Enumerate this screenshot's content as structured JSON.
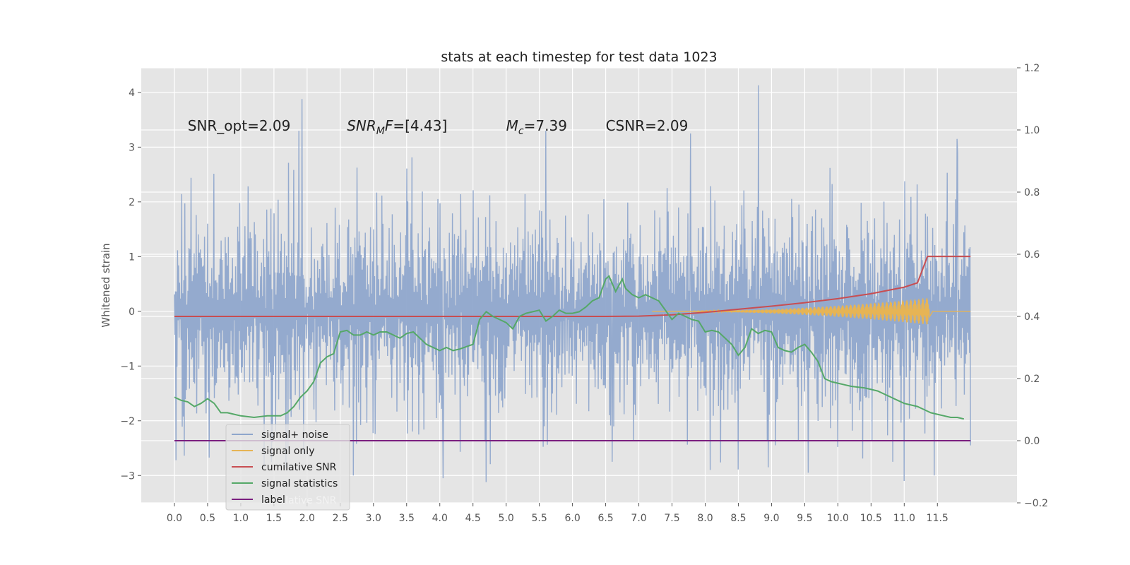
{
  "chart_data": {
    "type": "line",
    "title": "stats at each timestep for test data 1023",
    "ylabel": "Whitened strain",
    "xlim": [
      -0.5,
      12.7
    ],
    "ylim": [
      -3.5,
      4.45
    ],
    "y2lim": [
      -0.2,
      1.2
    ],
    "x_ticks": [
      0.0,
      0.5,
      1.0,
      1.5,
      2.0,
      2.5,
      3.0,
      3.5,
      4.0,
      4.5,
      5.0,
      5.5,
      6.0,
      6.5,
      7.0,
      7.5,
      8.0,
      8.5,
      9.0,
      9.5,
      10.0,
      10.5,
      11.0,
      11.5
    ],
    "x_tick_labels": [
      "0.0",
      "0.5",
      "1.0",
      "1.5",
      "2.0",
      "2.5",
      "3.0",
      "3.5",
      "4.0",
      "4.5",
      "5.0",
      "5.5",
      "6.0",
      "6.5",
      "7.0",
      "7.5",
      "8.0",
      "8.5",
      "9.0",
      "9.5",
      "10.0",
      "10.5",
      "11.0",
      "11.5"
    ],
    "y_ticks": [
      -3,
      -2,
      -1,
      0,
      1,
      2,
      3,
      4
    ],
    "y_tick_labels": [
      "−3",
      "−2",
      "−1",
      "0",
      "1",
      "2",
      "3",
      "4"
    ],
    "y2_ticks": [
      -0.2,
      0.0,
      0.2,
      0.4,
      0.6,
      0.8,
      1.0,
      1.2
    ],
    "y2_tick_labels": [
      "−0.2",
      "0.0",
      "0.2",
      "0.4",
      "0.6",
      "0.8",
      "1.0",
      "1.2"
    ],
    "grid": true,
    "legend_position": "lower-left",
    "annotations": [
      {
        "id": "snr-opt",
        "x": 0.2,
        "y": 3.3,
        "parts": [
          {
            "text": "SNR_opt=2.09"
          }
        ]
      },
      {
        "id": "snr-mf",
        "x": 2.6,
        "y": 3.3,
        "parts": [
          {
            "text": "SNR",
            "italic": true
          },
          {
            "text": "M",
            "italic": true,
            "sub": true
          },
          {
            "text": "F",
            "italic": true
          },
          {
            "text": "=[4.43]"
          }
        ]
      },
      {
        "id": "mc",
        "x": 5.0,
        "y": 3.3,
        "parts": [
          {
            "text": "M",
            "italic": true
          },
          {
            "text": "c",
            "italic": true,
            "sub": true
          },
          {
            "text": "=7.39"
          }
        ]
      },
      {
        "id": "csnr",
        "x": 6.5,
        "y": 3.3,
        "parts": [
          {
            "text": "CSNR=2.09"
          }
        ]
      }
    ],
    "series": [
      {
        "name": "signal+ noise",
        "color": "#8fa6cc",
        "axis": "left",
        "sampling": {
          "x_start": 0.0,
          "x_end": 12.0,
          "n": 1536,
          "envelope": 1.32,
          "spikes": [
            {
              "x": 1.92,
              "y": 3.88
            },
            {
              "x": 1.88,
              "y": 3.3
            },
            {
              "x": 5.6,
              "y": 3.3
            },
            {
              "x": 7.78,
              "y": 3.25
            },
            {
              "x": 8.8,
              "y": 4.13
            },
            {
              "x": 11.8,
              "y": 3.15
            },
            {
              "x": 4.05,
              "y": -3.05
            },
            {
              "x": 4.7,
              "y": -3.12
            },
            {
              "x": 2.7,
              "y": -3.0
            },
            {
              "x": 0.02,
              "y": -2.72
            },
            {
              "x": 11.0,
              "y": -3.1
            },
            {
              "x": 11.45,
              "y": -3.0
            },
            {
              "x": 9.55,
              "y": -2.95
            },
            {
              "x": 8.95,
              "y": -2.85
            },
            {
              "x": 12.0,
              "y": -2.45
            },
            {
              "x": 6.6,
              "y": -2.75
            }
          ]
        }
      },
      {
        "name": "signal only",
        "color": "#e6b455",
        "axis": "left",
        "chirp": {
          "x_start": 7.2,
          "x_peak": 11.38,
          "amp_peak": 0.25
        }
      },
      {
        "name": "cumilative SNR",
        "color": "#c84e52",
        "axis": "right",
        "x": [
          0.0,
          6.5,
          7.0,
          7.5,
          8.0,
          8.5,
          9.0,
          9.5,
          10.0,
          10.5,
          11.0,
          11.2,
          11.35,
          12.0
        ],
        "y": [
          0.4,
          0.4,
          0.401,
          0.405,
          0.413,
          0.423,
          0.433,
          0.444,
          0.457,
          0.473,
          0.494,
          0.508,
          0.593,
          0.593
        ]
      },
      {
        "name": "signal statistics",
        "color": "#55a868",
        "axis": "right",
        "x": [
          0.0,
          0.1,
          0.2,
          0.3,
          0.4,
          0.5,
          0.6,
          0.7,
          0.8,
          0.9,
          1.0,
          1.2,
          1.4,
          1.6,
          1.7,
          1.8,
          1.9,
          2.0,
          2.1,
          2.2,
          2.3,
          2.4,
          2.5,
          2.6,
          2.7,
          2.8,
          2.9,
          3.0,
          3.1,
          3.2,
          3.3,
          3.4,
          3.5,
          3.6,
          3.7,
          3.8,
          3.9,
          4.0,
          4.1,
          4.2,
          4.3,
          4.5,
          4.6,
          4.7,
          4.8,
          4.9,
          5.0,
          5.1,
          5.2,
          5.3,
          5.4,
          5.5,
          5.6,
          5.7,
          5.8,
          5.9,
          6.0,
          6.1,
          6.2,
          6.3,
          6.4,
          6.5,
          6.55,
          6.65,
          6.75,
          6.8,
          6.9,
          7.0,
          7.1,
          7.2,
          7.3,
          7.4,
          7.5,
          7.6,
          7.7,
          7.8,
          7.9,
          8.0,
          8.1,
          8.2,
          8.3,
          8.4,
          8.5,
          8.6,
          8.7,
          8.8,
          8.9,
          9.0,
          9.1,
          9.2,
          9.3,
          9.4,
          9.5,
          9.6,
          9.7,
          9.8,
          9.9,
          10.0,
          10.1,
          10.2,
          10.4,
          10.5,
          10.6,
          10.7,
          10.8,
          10.9,
          11.0,
          11.1,
          11.2,
          11.3,
          11.4,
          11.5,
          11.6,
          11.7,
          11.8,
          11.9
        ],
        "y": [
          0.14,
          0.13,
          0.125,
          0.11,
          0.12,
          0.135,
          0.12,
          0.09,
          0.09,
          0.085,
          0.08,
          0.075,
          0.08,
          0.08,
          0.09,
          0.11,
          0.14,
          0.16,
          0.19,
          0.25,
          0.27,
          0.28,
          0.35,
          0.355,
          0.34,
          0.34,
          0.35,
          0.34,
          0.35,
          0.35,
          0.34,
          0.33,
          0.345,
          0.35,
          0.33,
          0.31,
          0.3,
          0.29,
          0.3,
          0.29,
          0.295,
          0.31,
          0.39,
          0.415,
          0.4,
          0.39,
          0.38,
          0.36,
          0.4,
          0.41,
          0.415,
          0.42,
          0.385,
          0.4,
          0.42,
          0.41,
          0.41,
          0.415,
          0.43,
          0.45,
          0.46,
          0.52,
          0.53,
          0.48,
          0.52,
          0.49,
          0.47,
          0.46,
          0.47,
          0.46,
          0.45,
          0.42,
          0.39,
          0.41,
          0.4,
          0.39,
          0.385,
          0.35,
          0.355,
          0.35,
          0.33,
          0.31,
          0.275,
          0.3,
          0.36,
          0.345,
          0.355,
          0.35,
          0.3,
          0.29,
          0.285,
          0.3,
          0.31,
          0.285,
          0.255,
          0.2,
          0.19,
          0.185,
          0.18,
          0.175,
          0.17,
          0.165,
          0.16,
          0.15,
          0.14,
          0.13,
          0.12,
          0.115,
          0.11,
          0.1,
          0.09,
          0.085,
          0.08,
          0.075,
          0.075,
          0.07
        ],
        "note_x_end": 12.0
      },
      {
        "name": "label",
        "color": "#7b1f7f",
        "axis": "right",
        "x": [
          0.0,
          12.0
        ],
        "y": [
          0.0,
          0.0
        ]
      }
    ],
    "legend_ghost_text": "cumilative SNR"
  }
}
